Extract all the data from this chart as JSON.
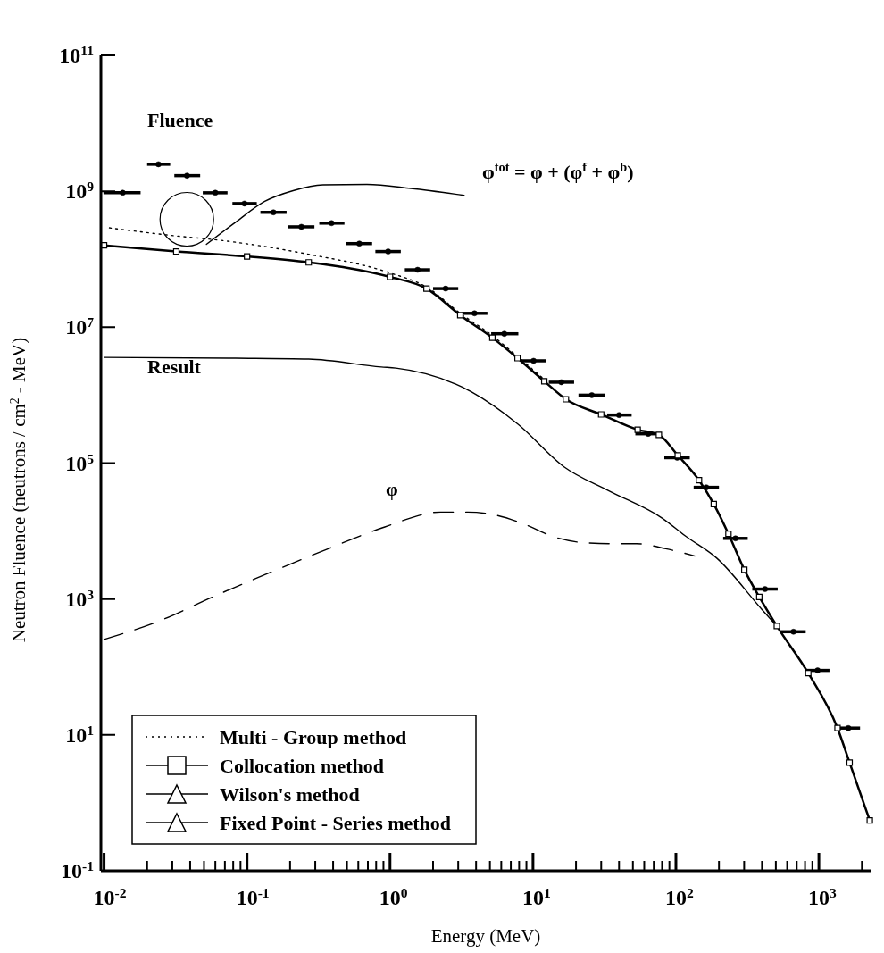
{
  "chart_data": {
    "type": "line",
    "xlabel": "Energy (MeV)",
    "ylabel": "Neutron Fluence (neutrons / cm$^{2}$ - MeV)",
    "log": "xy",
    "grid": false,
    "legend": "bottom left",
    "xlim": [
      0.0095,
      2300
    ],
    "ylim": [
      0.1,
      100000000000.0
    ],
    "xticks": [
      {
        "value": 0.01,
        "label": "10$^{-2}$"
      },
      {
        "value": 0.02,
        "label": null
      },
      {
        "value": 0.03,
        "label": null
      },
      {
        "value": 0.04,
        "label": null
      },
      {
        "value": 0.05,
        "label": null
      },
      {
        "value": 0.06,
        "label": null
      },
      {
        "value": 0.07,
        "label": null
      },
      {
        "value": 0.08,
        "label": null
      },
      {
        "value": 0.09,
        "label": null
      },
      {
        "value": 0.1,
        "label": "10$^{-1}$"
      },
      {
        "value": 0.2,
        "label": null
      },
      {
        "value": 0.3,
        "label": null
      },
      {
        "value": 0.4,
        "label": null
      },
      {
        "value": 0.5,
        "label": null
      },
      {
        "value": 0.6,
        "label": null
      },
      {
        "value": 0.7,
        "label": null
      },
      {
        "value": 0.8,
        "label": null
      },
      {
        "value": 0.9,
        "label": null
      },
      {
        "value": 1,
        "label": "10$^{0}$"
      },
      {
        "value": 2,
        "label": null
      },
      {
        "value": 3,
        "label": null
      },
      {
        "value": 4,
        "label": null
      },
      {
        "value": 5,
        "label": null
      },
      {
        "value": 6,
        "label": null
      },
      {
        "value": 7,
        "label": null
      },
      {
        "value": 8,
        "label": null
      },
      {
        "value": 9,
        "label": null
      },
      {
        "value": 10,
        "label": "10$^{1}$"
      },
      {
        "value": 20,
        "label": null
      },
      {
        "value": 30,
        "label": null
      },
      {
        "value": 40,
        "label": null
      },
      {
        "value": 50,
        "label": null
      },
      {
        "value": 60,
        "label": null
      },
      {
        "value": 70,
        "label": null
      },
      {
        "value": 80,
        "label": null
      },
      {
        "value": 90,
        "label": null
      },
      {
        "value": 100,
        "label": "10$^{2}$"
      },
      {
        "value": 200,
        "label": null
      },
      {
        "value": 300,
        "label": null
      },
      {
        "value": 400,
        "label": null
      },
      {
        "value": 500,
        "label": null
      },
      {
        "value": 600,
        "label": null
      },
      {
        "value": 700,
        "label": null
      },
      {
        "value": 800,
        "label": null
      },
      {
        "value": 900,
        "label": null
      },
      {
        "value": 1000,
        "label": "10$^{3}$"
      },
      {
        "value": 2000,
        "label": null
      }
    ],
    "yticks": [
      {
        "value": 0.1,
        "label": "10$^{-1}$"
      },
      {
        "value": 10,
        "label": "10$^{1}$"
      },
      {
        "value": 1000,
        "label": "10$^{3}$"
      },
      {
        "value": 100000,
        "label": "10$^{5}$"
      },
      {
        "value": 10000000,
        "label": "10$^{7}$"
      },
      {
        "value": 1000000000,
        "label": "10$^{9}$"
      },
      {
        "value": 100000000000,
        "label": "10$^{11}$"
      }
    ],
    "series": [
      {
        "type": "scatter",
        "color": "#000000",
        "marker": "circle",
        "x": [
          0.0135,
          0.024,
          0.038,
          0.06,
          0.096,
          0.153,
          0.24,
          0.39,
          0.61,
          0.97,
          1.56,
          2.45,
          3.9,
          6.3,
          10.1,
          15.8,
          25.8,
          40,
          64,
          102,
          163,
          261,
          420,
          664,
          980,
          1607
        ],
        "values": [
          950000000.0,
          2500000000.0,
          1700000000.0,
          950000000.0,
          660000000.0,
          490000000.0,
          300000000.0,
          340000000.0,
          170000000.0,
          130000000.0,
          70000000.0,
          37000000.0,
          16000000.0,
          8000000.0,
          3200000.0,
          1550000.0,
          1000000.0,
          510000.0,
          270000.0,
          120000.0,
          44000.0,
          7800.0,
          1400.0,
          330,
          89,
          12.6
        ],
        "xerrors": [
          [
            0.0099,
            0.018
          ],
          [
            0.02,
            0.029
          ],
          [
            0.031,
            0.047
          ],
          [
            0.049,
            0.073
          ],
          [
            0.079,
            0.117
          ],
          [
            0.124,
            0.189
          ],
          [
            0.194,
            0.296
          ],
          [
            0.32,
            0.48
          ],
          [
            0.49,
            0.75
          ],
          [
            0.79,
            1.19
          ],
          [
            1.27,
            1.91
          ],
          [
            2.0,
            3.0
          ],
          [
            3.2,
            4.8
          ],
          [
            5.1,
            7.9
          ],
          [
            8.3,
            12.4
          ],
          [
            12.9,
            19.4
          ],
          [
            20.8,
            31.8
          ],
          [
            33,
            49
          ],
          [
            52,
            79
          ],
          [
            83,
            125
          ],
          [
            133,
            200
          ],
          [
            214,
            318
          ],
          [
            342,
            515
          ],
          [
            545,
            809
          ],
          [
            809,
            1186
          ],
          [
            1327,
            1941
          ]
        ]
      },
      {
        "type": "line",
        "color": "#000000",
        "line_style": "solid",
        "marker": "none",
        "x": [
          0.052,
          0.083,
          0.133,
          0.21,
          0.34,
          0.69,
          1.4,
          3.3
        ],
        "values": [
          166000000.0,
          350000000.0,
          710000000.0,
          1020000000.0,
          1240000000.0,
          1260000000.0,
          1100000000.0,
          870000000.0
        ]
      },
      {
        "type": "line",
        "color": "#000000",
        "line_style": "solid",
        "marker": "none",
        "x": [
          0.01,
          0.083,
          0.27,
          0.87,
          1.1,
          3.7,
          7.9,
          16.5,
          34,
          80,
          118,
          193,
          400,
          508
        ],
        "values": [
          3600000.0,
          3500000.0,
          3400000.0,
          2600000.0,
          2500000.0,
          1120000.0,
          370000.0,
          88000.0,
          39000.0,
          15500.0,
          8300.0,
          4000.0,
          700,
          400
        ]
      },
      {
        "type": "line",
        "color": "#000000",
        "line_style": "dashed",
        "marker": "none",
        "x": [
          0.01,
          0.024,
          0.059,
          0.148,
          0.37,
          0.92,
          2.25,
          3.5,
          5.6,
          8.7,
          13.8,
          21.7,
          34.5,
          53,
          85,
          135
        ],
        "values": [
          255,
          470,
          1100,
          2500,
          5500,
          11500,
          19000,
          19000,
          17000,
          12600,
          8300,
          6800,
          6500,
          6500,
          5500,
          4300
        ]
      },
      {
        "name": "Multi - Group method",
        "type": "line",
        "color": "#000000",
        "line_style": "dotted",
        "marker": "none",
        "x": [
          0.0109,
          0.032,
          0.065,
          0.26,
          1.0,
          1.8,
          3.1,
          5.2,
          7.8,
          12
        ],
        "values": [
          290000000.0,
          220000000.0,
          190000000.0,
          120000000.0,
          63000000.0,
          39000000.0,
          16000000.0,
          7500000.0,
          3700000.0,
          1700000.0
        ]
      },
      {
        "name": "Collocation method",
        "type": "line",
        "color": "#000000",
        "line_style": "solid",
        "marker": "square",
        "x": [
          0.01,
          0.032,
          0.1,
          0.27,
          1.0,
          1.8,
          3.1,
          5.2,
          7.8,
          12,
          17,
          30,
          54,
          76,
          103,
          145,
          184,
          233,
          301,
          383,
          508,
          843,
          1350,
          1640,
          2270
        ],
        "values": [
          160000000.0,
          130000000.0,
          110000000.0,
          90000000.0,
          55000000.0,
          37000000.0,
          15000000.0,
          7000000.0,
          3500000.0,
          1600000.0,
          870000.0,
          520000.0,
          310000.0,
          260000.0,
          130000.0,
          56000.0,
          25000.0,
          9100.0,
          2700.0,
          1070,
          400,
          81,
          12.6,
          3.9,
          0.55
        ]
      },
      {
        "name": "Wilson's method",
        "type": "line",
        "color": "#000000",
        "line_style": "solid",
        "marker": "triangle"
      },
      {
        "name": "Fixed Point - Series method",
        "type": "line",
        "color": "#000000",
        "line_style": "solid",
        "marker": "triangle"
      }
    ],
    "annotations": [
      "Fluence",
      "φ$^{tot}$ = φ + (φ$^{f}$ + φ$^{b}$)",
      "Result",
      "φ"
    ]
  }
}
